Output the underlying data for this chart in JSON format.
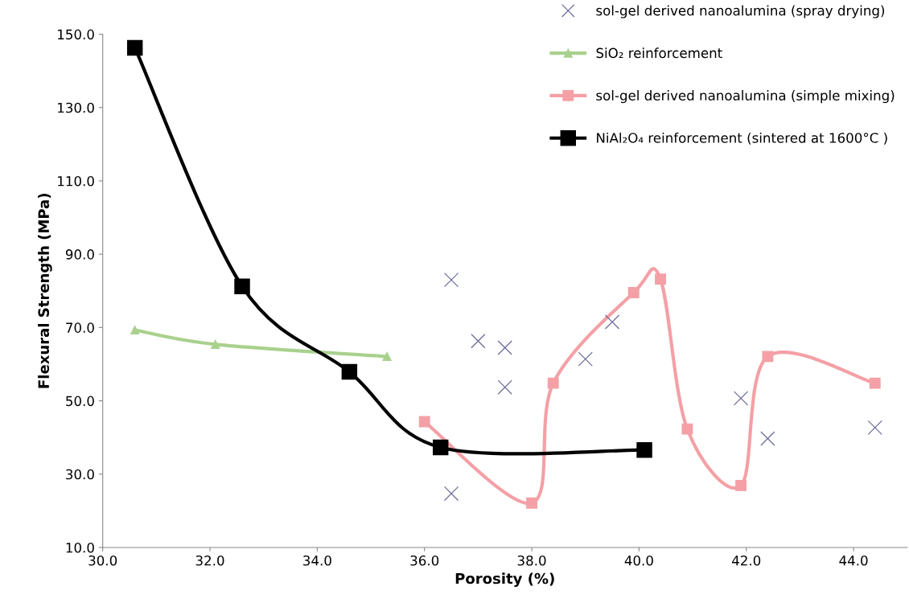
{
  "chart_data": {
    "type": "line",
    "xlabel": "Porosity (%)",
    "ylabel": "Flexural Strength (MPa)",
    "xlim": [
      30,
      45
    ],
    "xticks": [
      {
        "value": 30,
        "label": "30.0"
      },
      {
        "value": 32,
        "label": "32.0"
      },
      {
        "value": 34,
        "label": "34.0"
      },
      {
        "value": 36,
        "label": "36.0"
      },
      {
        "value": 38,
        "label": "38.0"
      },
      {
        "value": 40,
        "label": "40.0"
      },
      {
        "value": 42,
        "label": "42.0"
      },
      {
        "value": 44,
        "label": "44.0"
      }
    ],
    "ylim": [
      10,
      150
    ],
    "yticks": [
      {
        "value": 10,
        "label": "10.0"
      },
      {
        "value": 30,
        "label": "30.0"
      },
      {
        "value": 50,
        "label": "50.0"
      },
      {
        "value": 70,
        "label": "70.0"
      },
      {
        "value": 90,
        "label": "90.0"
      },
      {
        "value": 110,
        "label": "110.0"
      },
      {
        "value": 130,
        "label": "130.0"
      },
      {
        "value": 150,
        "label": "150.0"
      }
    ],
    "grid": false,
    "legend": "top right",
    "series": [
      {
        "name": "sol-gel derived nanoalumina (spray drying)",
        "type": "scatter",
        "marker": "cross",
        "color": "#6b6b9a",
        "x": [
          36.5,
          37.0,
          37.5,
          37.5,
          36.5,
          39.0,
          39.5,
          41.9,
          42.4,
          44.4
        ],
        "values": [
          83,
          66.3,
          64.5,
          53.7,
          24.7,
          61.4,
          71.5,
          50.7,
          39.7,
          42.7
        ]
      },
      {
        "name": "SiO₂ reinforcement",
        "marker": "triangle",
        "color": "#a9d18e",
        "x": [
          30.6,
          32.1,
          35.3
        ],
        "values": [
          69.3,
          65.4,
          62.1
        ]
      },
      {
        "name": "sol-gel derived nanoalumina (simple mixing)",
        "marker": "square",
        "color": "#f4a0a6",
        "x": [
          36.0,
          38.0,
          38.4,
          39.9,
          40.4,
          40.9,
          41.9,
          42.4,
          44.4
        ],
        "values": [
          44.3,
          22.1,
          54.8,
          79.5,
          83.2,
          42.3,
          26.9,
          62.1,
          54.8
        ]
      },
      {
        "name": "NiAl₂O₄ reinforcement (sintered at 1600°C )",
        "marker": "square",
        "color": "#000000",
        "x": [
          30.6,
          32.6,
          34.6,
          36.3,
          40.1
        ],
        "values": [
          146.3,
          81.2,
          57.9,
          37.3,
          36.6
        ]
      }
    ]
  }
}
